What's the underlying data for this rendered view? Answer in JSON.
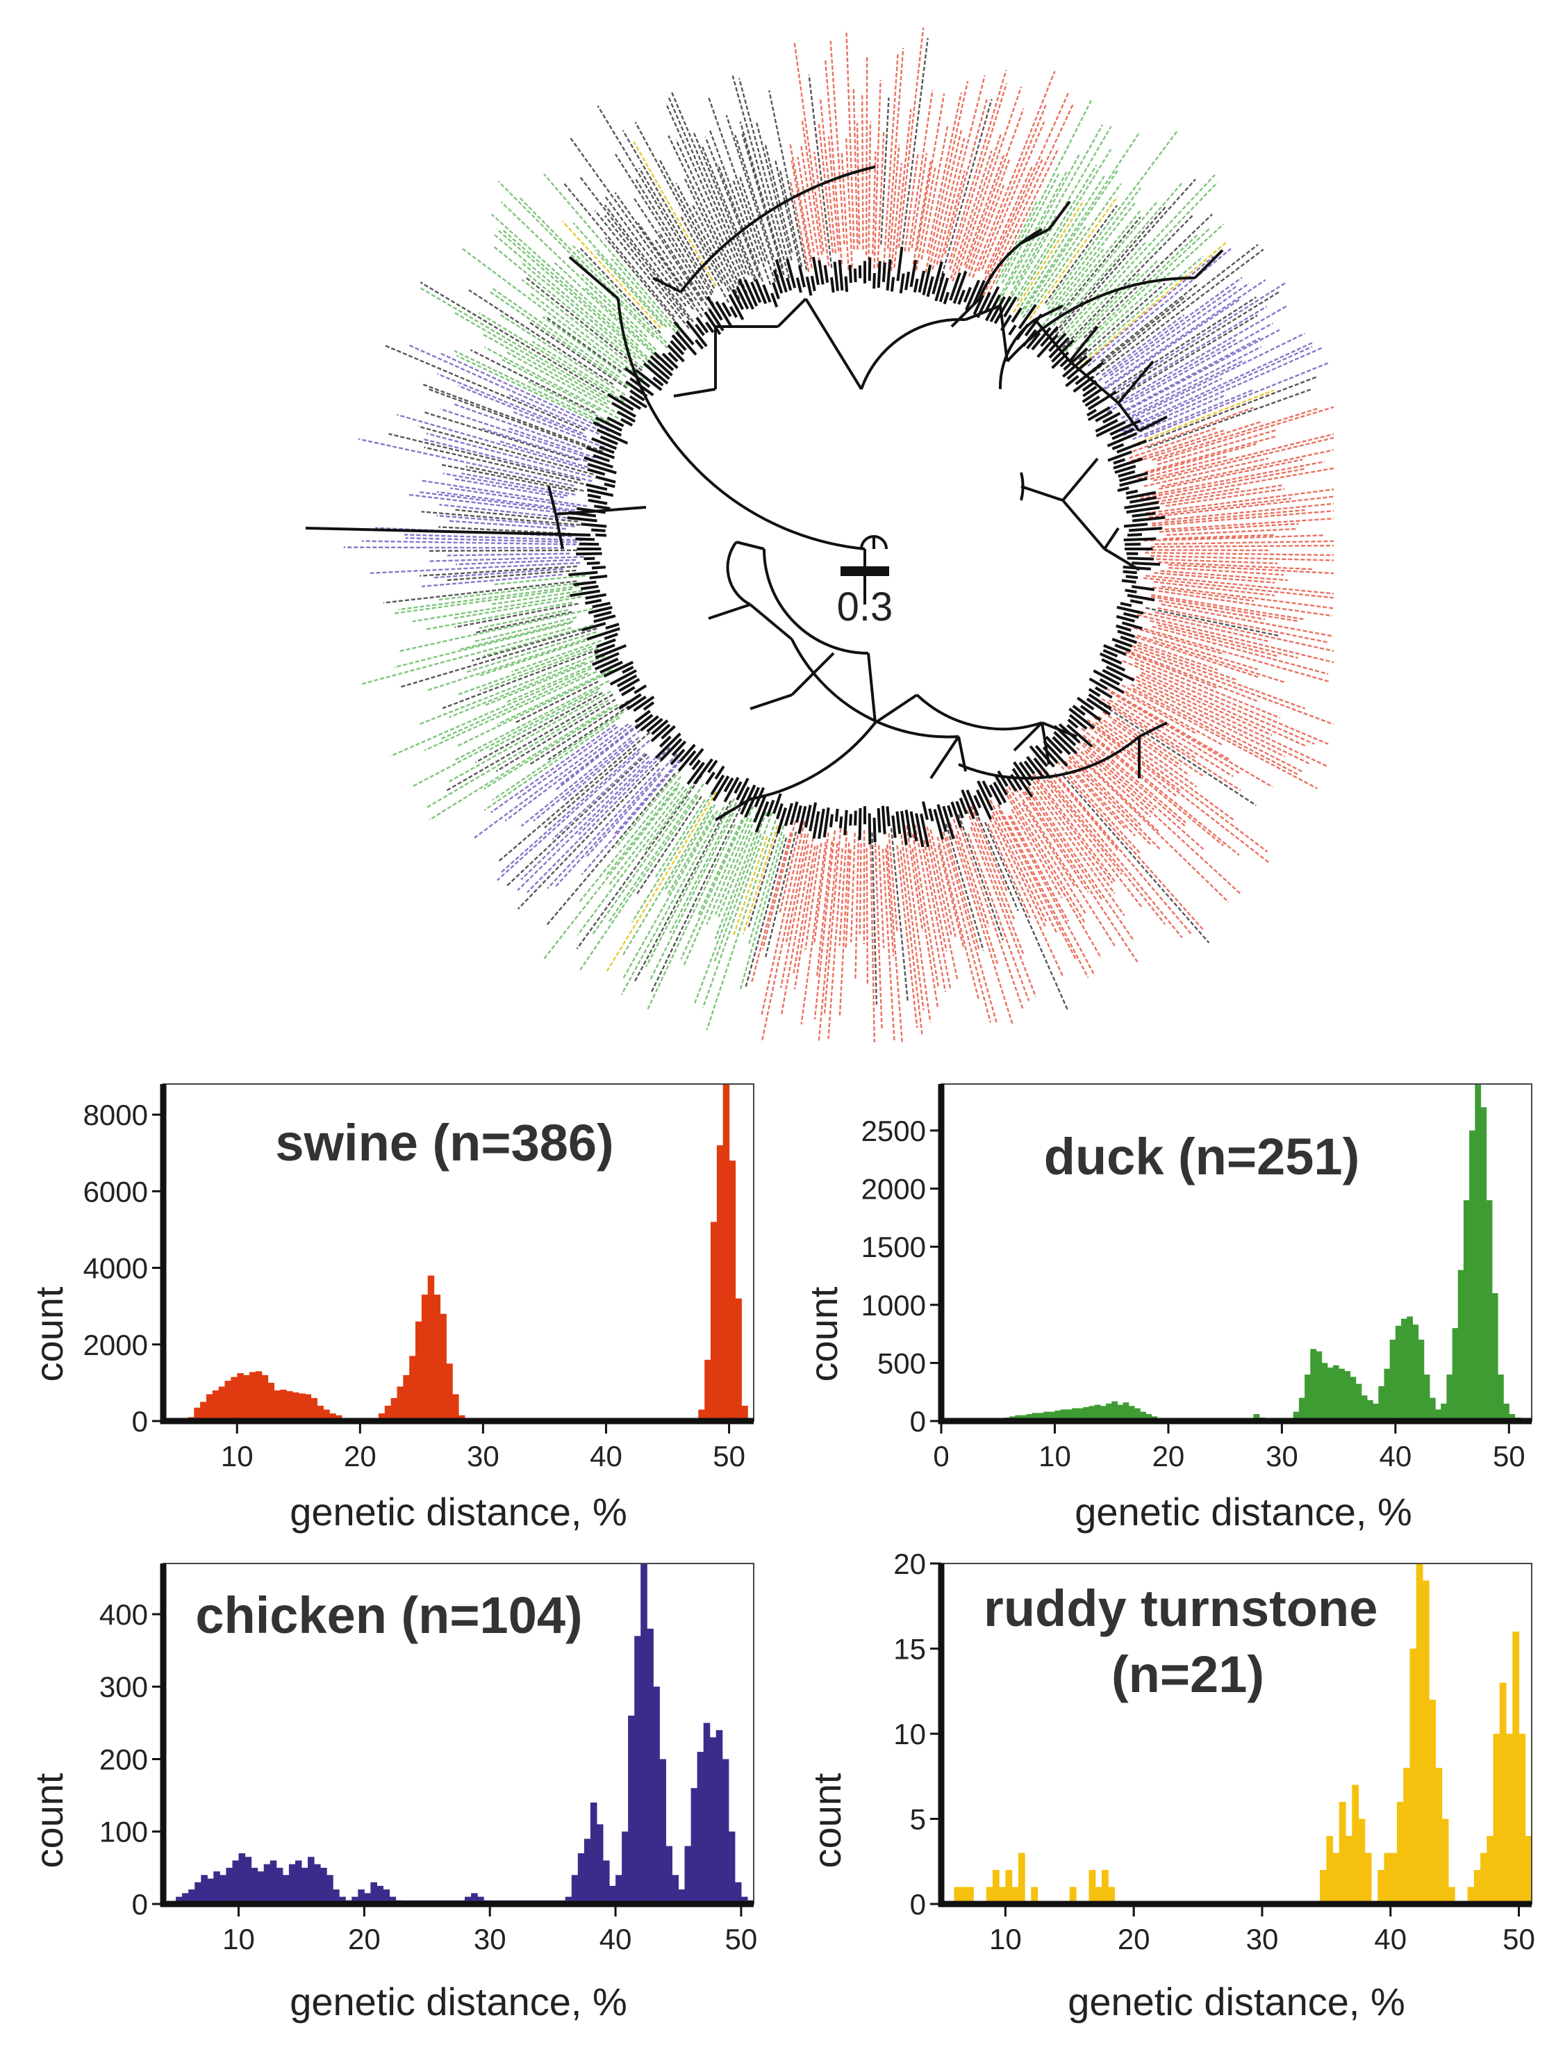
{
  "tree": {
    "scale_bar_label": "0.3",
    "clade_colors": [
      "#e8604c",
      "#6fbf6a",
      "#7a66c4",
      "#e8c21a",
      "#444444"
    ]
  },
  "chart_data": [
    {
      "type": "bar",
      "title": "swine (n=386)",
      "xlabel": "genetic distance, %",
      "ylabel": "count",
      "color": "#e03a10",
      "xlim": [
        4,
        52
      ],
      "ylim": [
        0,
        8800
      ],
      "xticks": [
        "10",
        "20",
        "30",
        "40",
        "50"
      ],
      "yticks": [
        "0",
        "2000",
        "4000",
        "6000",
        "8000"
      ],
      "bin_width": 0.5,
      "x": [
        6,
        6.5,
        7,
        7.5,
        8,
        8.5,
        9,
        9.5,
        10,
        10.5,
        11,
        11.5,
        12,
        12.5,
        13,
        13.5,
        14,
        14.5,
        15,
        15.5,
        16,
        16.5,
        17,
        17.5,
        18,
        18.5,
        21.5,
        22,
        22.5,
        23,
        23.5,
        24,
        24.5,
        25,
        25.5,
        26,
        26.5,
        27,
        27.5,
        28,
        47.5,
        48,
        48.5,
        49,
        49.5,
        50,
        50.5,
        51
      ],
      "values": [
        100,
        350,
        500,
        700,
        800,
        900,
        1050,
        1150,
        1250,
        1200,
        1280,
        1300,
        1200,
        1000,
        800,
        820,
        780,
        750,
        720,
        700,
        600,
        400,
        300,
        200,
        150,
        80,
        200,
        400,
        600,
        900,
        1200,
        1700,
        2600,
        3300,
        3800,
        3300,
        2800,
        1500,
        700,
        150,
        300,
        1600,
        5200,
        7200,
        8800,
        6800,
        3200,
        400
      ]
    },
    {
      "type": "bar",
      "title": "duck (n=251)",
      "xlabel": "genetic distance, %",
      "ylabel": "count",
      "color": "#3f9c33",
      "xlim": [
        0,
        52
      ],
      "ylim": [
        0,
        2900
      ],
      "xticks": [
        "0",
        "10",
        "20",
        "30",
        "40",
        "50"
      ],
      "yticks": [
        "0",
        "500",
        "1000",
        "1500",
        "2000",
        "2500"
      ],
      "bin_width": 0.5,
      "x": [
        5.5,
        6,
        6.5,
        7,
        7.5,
        8,
        8.5,
        9,
        9.5,
        10,
        10.5,
        11,
        11.5,
        12,
        12.5,
        13,
        13.5,
        14,
        14.5,
        15,
        15.5,
        16,
        16.5,
        17,
        17.5,
        18,
        18.5,
        19,
        27.5,
        28,
        31,
        31.5,
        32,
        32.5,
        33,
        33.5,
        34,
        34.5,
        35,
        35.5,
        36,
        36.5,
        37,
        37.5,
        38,
        38.5,
        39,
        39.5,
        40,
        40.5,
        41,
        41.5,
        42,
        42.5,
        43,
        43.5,
        44,
        44.5,
        45,
        45.5,
        46,
        46.5,
        47,
        47.5,
        48,
        48.5,
        49,
        49.5,
        50,
        50.5,
        51
      ],
      "values": [
        30,
        40,
        50,
        50,
        60,
        70,
        70,
        80,
        80,
        90,
        100,
        100,
        110,
        110,
        120,
        130,
        140,
        130,
        150,
        170,
        140,
        160,
        130,
        110,
        80,
        60,
        40,
        20,
        60,
        30,
        80,
        200,
        400,
        620,
        600,
        500,
        460,
        480,
        450,
        430,
        380,
        320,
        220,
        180,
        150,
        300,
        450,
        700,
        820,
        880,
        900,
        830,
        700,
        400,
        200,
        100,
        150,
        400,
        800,
        1300,
        1900,
        2500,
        2900,
        2700,
        1900,
        1100,
        400,
        150,
        60,
        30,
        10
      ]
    },
    {
      "type": "bar",
      "title": "chicken (n=104)",
      "xlabel": "genetic distance, %",
      "ylabel": "count",
      "color": "#3d2b8c",
      "xlim": [
        4,
        51
      ],
      "ylim": [
        0,
        470
      ],
      "xticks": [
        "10",
        "20",
        "30",
        "40",
        "50"
      ],
      "yticks": [
        "0",
        "100",
        "200",
        "300",
        "400"
      ],
      "bin_width": 0.5,
      "x": [
        5,
        5.5,
        6,
        6.5,
        7,
        7.5,
        8,
        8.5,
        9,
        9.5,
        10,
        10.5,
        11,
        11.5,
        12,
        12.5,
        13,
        13.5,
        14,
        14.5,
        15,
        15.5,
        16,
        16.5,
        17,
        17.5,
        18,
        18.5,
        19,
        19.5,
        20,
        20.5,
        21,
        21.5,
        22,
        22.5,
        28,
        28.5,
        29,
        29.5,
        36,
        36.5,
        37,
        37.5,
        38,
        38.5,
        39,
        39.5,
        40,
        40.5,
        41,
        41.5,
        42,
        42.5,
        43,
        43.5,
        44,
        44.5,
        45,
        45.5,
        46,
        46.5,
        47,
        47.5,
        48,
        48.5,
        49,
        49.5,
        50,
        50.5
      ],
      "values": [
        10,
        15,
        20,
        30,
        40,
        35,
        45,
        40,
        50,
        60,
        70,
        65,
        50,
        45,
        55,
        60,
        50,
        40,
        55,
        60,
        50,
        65,
        55,
        50,
        40,
        20,
        10,
        5,
        10,
        20,
        15,
        30,
        25,
        20,
        10,
        5,
        10,
        15,
        10,
        5,
        10,
        40,
        70,
        90,
        140,
        110,
        60,
        25,
        40,
        100,
        260,
        370,
        470,
        380,
        300,
        200,
        80,
        40,
        20,
        80,
        160,
        210,
        250,
        230,
        240,
        200,
        100,
        30,
        10,
        5
      ],
      "baseline": 5
    },
    {
      "type": "bar",
      "title": "ruddy turnstone (n=21)",
      "title_lines": [
        "ruddy turnstone",
        "(n=21)"
      ],
      "xlabel": "genetic distance, %",
      "ylabel": "count",
      "color": "#f5c10e",
      "xlim": [
        5,
        51
      ],
      "ylim": [
        0,
        20
      ],
      "xticks": [
        "10",
        "20",
        "30",
        "40",
        "50"
      ],
      "yticks": [
        "0",
        "5",
        "10",
        "15",
        "20"
      ],
      "bin_width": 0.5,
      "x": [
        6,
        6.5,
        7,
        8.5,
        9,
        9.5,
        10,
        10.5,
        11,
        12,
        15,
        16.5,
        17,
        17.5,
        18,
        34.5,
        35,
        35.5,
        36,
        36.5,
        37,
        37.5,
        38,
        39,
        39.5,
        40,
        40.5,
        41,
        41.5,
        42,
        42.5,
        43,
        43.5,
        44,
        44.5,
        46,
        46.5,
        47,
        47.5,
        48,
        48.5,
        49,
        49.5,
        50,
        50.5
      ],
      "values": [
        1,
        1,
        1,
        1,
        2,
        1,
        2,
        1,
        3,
        1,
        1,
        2,
        1,
        2,
        1,
        2,
        4,
        3,
        6,
        4,
        7,
        5,
        3,
        2,
        3,
        3,
        6,
        8,
        15,
        20,
        19,
        12,
        8,
        5,
        1,
        1,
        2,
        3,
        4,
        10,
        13,
        10,
        16,
        10,
        4
      ]
    }
  ]
}
